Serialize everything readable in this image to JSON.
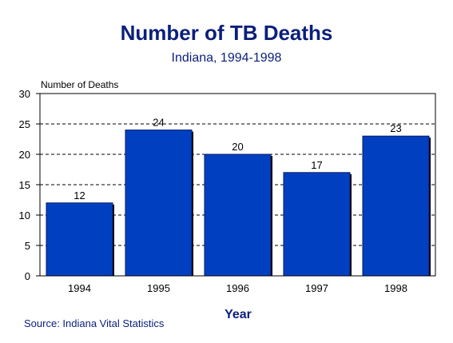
{
  "chart_data": {
    "type": "bar",
    "title": "Number of TB Deaths",
    "subtitle": "Indiana, 1994-1998",
    "ylabel": "Number of Deaths",
    "xlabel": "Year",
    "categories": [
      "1994",
      "1995",
      "1996",
      "1997",
      "1998"
    ],
    "values": [
      12,
      24,
      20,
      17,
      23
    ],
    "ylim": [
      0,
      30
    ],
    "yticks": [
      0,
      5,
      10,
      15,
      20,
      25,
      30
    ],
    "grid": "dashed horizontal",
    "bar_color": "#0040c0",
    "source": "Source:  Indiana Vital Statistics"
  }
}
